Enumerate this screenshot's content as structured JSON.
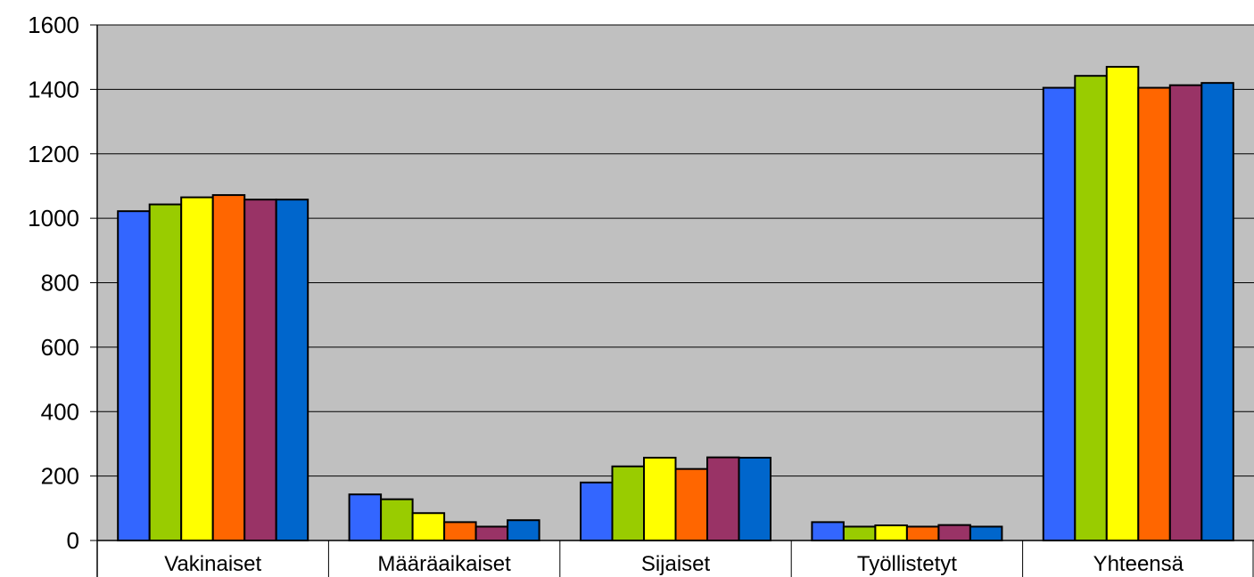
{
  "chart_data": {
    "type": "bar",
    "title": "",
    "xlabel": "",
    "ylabel": "",
    "categories": [
      "Vakinaiset",
      "Määräaikaiset",
      "Sijaiset",
      "Työllistetyt",
      "Yhteensä"
    ],
    "series": [
      {
        "color": "#3366ff",
        "values": [
          1022,
          143,
          180,
          57,
          1405
        ]
      },
      {
        "color": "#99cc00",
        "values": [
          1043,
          128,
          230,
          43,
          1442
        ]
      },
      {
        "color": "#ffff00",
        "values": [
          1065,
          85,
          257,
          47,
          1470
        ]
      },
      {
        "color": "#ff6600",
        "values": [
          1072,
          57,
          222,
          43,
          1405
        ]
      },
      {
        "color": "#993366",
        "values": [
          1058,
          43,
          258,
          48,
          1413
        ]
      },
      {
        "color": "#0066cc",
        "values": [
          1058,
          63,
          257,
          43,
          1420
        ]
      }
    ],
    "ylim": [
      0,
      1600
    ],
    "yticks": [
      "0",
      "200",
      "400",
      "600",
      "800",
      "1000",
      "1200",
      "1400",
      "1600"
    ],
    "grid": true,
    "legend": "none",
    "plot_background": "#c0c0c0"
  }
}
